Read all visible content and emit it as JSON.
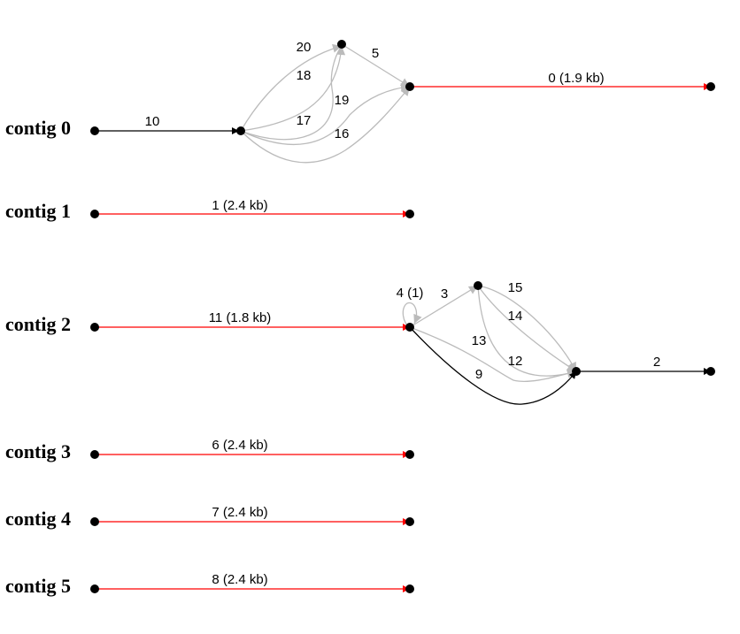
{
  "colors": {
    "long_edge": "#ff0000",
    "main_edge": "#000000",
    "alt_edge": "#bbbbbb",
    "node": "#000000"
  },
  "contigs": [
    {
      "label": "contig 0",
      "edges": [
        {
          "label": "10",
          "style": "main"
        },
        {
          "label": "20",
          "style": "alt"
        },
        {
          "label": "18",
          "style": "alt"
        },
        {
          "label": "17",
          "style": "alt"
        },
        {
          "label": "19",
          "style": "alt"
        },
        {
          "label": "16",
          "style": "alt"
        },
        {
          "label": "5",
          "style": "alt"
        },
        {
          "label": "0 (1.9 kb)",
          "style": "long"
        }
      ]
    },
    {
      "label": "contig 1",
      "edges": [
        {
          "label": "1 (2.4 kb)",
          "style": "long"
        }
      ]
    },
    {
      "label": "contig 2",
      "edges": [
        {
          "label": "11 (1.8 kb)",
          "style": "long"
        },
        {
          "label": "4 (1)",
          "style": "alt"
        },
        {
          "label": "3",
          "style": "alt"
        },
        {
          "label": "15",
          "style": "alt"
        },
        {
          "label": "14",
          "style": "alt"
        },
        {
          "label": "13",
          "style": "alt"
        },
        {
          "label": "12",
          "style": "alt"
        },
        {
          "label": "9",
          "style": "main"
        },
        {
          "label": "2",
          "style": "main"
        }
      ]
    },
    {
      "label": "contig 3",
      "edges": [
        {
          "label": "6 (2.4 kb)",
          "style": "long"
        }
      ]
    },
    {
      "label": "contig 4",
      "edges": [
        {
          "label": "7 (2.4 kb)",
          "style": "long"
        }
      ]
    },
    {
      "label": "contig 5",
      "edges": [
        {
          "label": "8 (2.4 kb)",
          "style": "long"
        }
      ]
    }
  ]
}
